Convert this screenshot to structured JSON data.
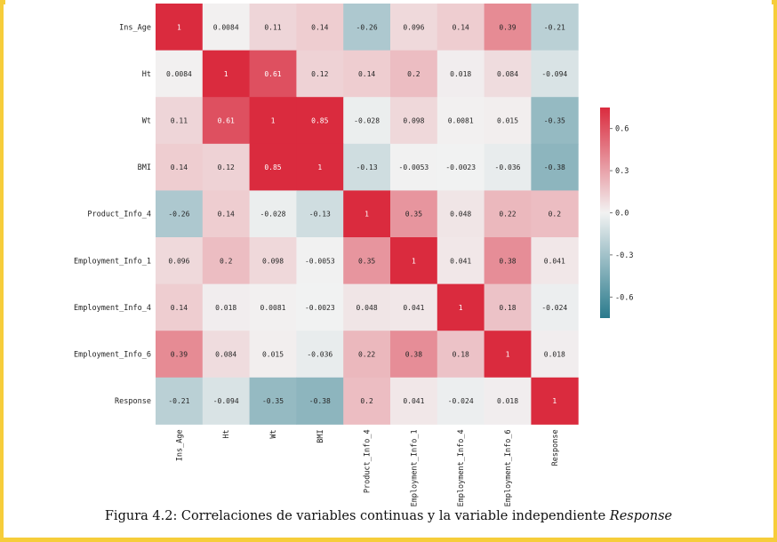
{
  "chart_data": {
    "type": "heatmap",
    "rows": [
      "Ins_Age",
      "Ht",
      "Wt",
      "BMI",
      "Product_Info_4",
      "Employment_Info_1",
      "Employment_Info_4",
      "Employment_Info_6",
      "Response"
    ],
    "columns": [
      "Ins_Age",
      "Ht",
      "Wt",
      "BMI",
      "Product_Info_4",
      "Employment_Info_1",
      "Employment_Info_4",
      "Employment_Info_6",
      "Response"
    ],
    "values": [
      [
        1,
        0.0084,
        0.11,
        0.14,
        -0.26,
        0.096,
        0.14,
        0.39,
        -0.21
      ],
      [
        0.0084,
        1,
        0.61,
        0.12,
        0.14,
        0.2,
        0.018,
        0.084,
        -0.094
      ],
      [
        0.11,
        0.61,
        1,
        0.85,
        -0.028,
        0.098,
        0.0081,
        0.015,
        -0.35
      ],
      [
        0.14,
        0.12,
        0.85,
        1,
        -0.13,
        -0.0053,
        -0.0023,
        -0.036,
        -0.38
      ],
      [
        -0.26,
        0.14,
        -0.028,
        -0.13,
        1,
        0.35,
        0.048,
        0.22,
        0.2
      ],
      [
        0.096,
        0.2,
        0.098,
        -0.0053,
        0.35,
        1,
        0.041,
        0.38,
        0.041
      ],
      [
        0.14,
        0.018,
        0.0081,
        -0.0023,
        0.048,
        0.041,
        1,
        0.18,
        -0.024
      ],
      [
        0.39,
        0.084,
        0.015,
        -0.036,
        0.22,
        0.38,
        0.18,
        1,
        0.018
      ],
      [
        -0.21,
        -0.094,
        -0.35,
        -0.38,
        0.2,
        0.041,
        -0.024,
        0.018,
        1
      ]
    ],
    "labels": [
      [
        "1",
        "0.0084",
        "0.11",
        "0.14",
        "-0.26",
        "0.096",
        "0.14",
        "0.39",
        "-0.21"
      ],
      [
        "0.0084",
        "1",
        "0.61",
        "0.12",
        "0.14",
        "0.2",
        "0.018",
        "0.084",
        "-0.094"
      ],
      [
        "0.11",
        "0.61",
        "1",
        "0.85",
        "-0.028",
        "0.098",
        "0.0081",
        "0.015",
        "-0.35"
      ],
      [
        "0.14",
        "0.12",
        "0.85",
        "1",
        "-0.13",
        "-0.0053",
        "-0.0023",
        "-0.036",
        "-0.38"
      ],
      [
        "-0.26",
        "0.14",
        "-0.028",
        "-0.13",
        "1",
        "0.35",
        "0.048",
        "0.22",
        "0.2"
      ],
      [
        "0.096",
        "0.2",
        "0.098",
        "-0.0053",
        "0.35",
        "1",
        "0.041",
        "0.38",
        "0.041"
      ],
      [
        "0.14",
        "0.018",
        "0.0081",
        "-0.0023",
        "0.048",
        "0.041",
        "1",
        "0.18",
        "-0.024"
      ],
      [
        "0.39",
        "0.084",
        "0.015",
        "-0.036",
        "0.22",
        "0.38",
        "0.18",
        "1",
        "0.018"
      ],
      [
        "-0.21",
        "-0.094",
        "-0.35",
        "-0.38",
        "0.2",
        "0.041",
        "-0.024",
        "0.018",
        "1"
      ]
    ],
    "colorbar": {
      "ticks": [
        0.6,
        0.3,
        0.0,
        -0.3,
        -0.6
      ],
      "tick_labels": [
        "0.6",
        "0.3",
        "0.0",
        "-0.3",
        "-0.6"
      ],
      "range": [
        -0.75,
        0.75
      ],
      "colormap": "diverging teal-white-red",
      "colors": {
        "negative": "#2a7a8c",
        "neutral": "#f2f2f2",
        "positive": "#da2b3e"
      }
    },
    "title": "",
    "xlabel": "",
    "ylabel": ""
  },
  "caption": {
    "prefix": "Figura 4.2: Correlaciones de variables continuas y la variable independiente ",
    "emphasis": "Response"
  },
  "colors": {
    "frame": "#f6cd3a"
  }
}
